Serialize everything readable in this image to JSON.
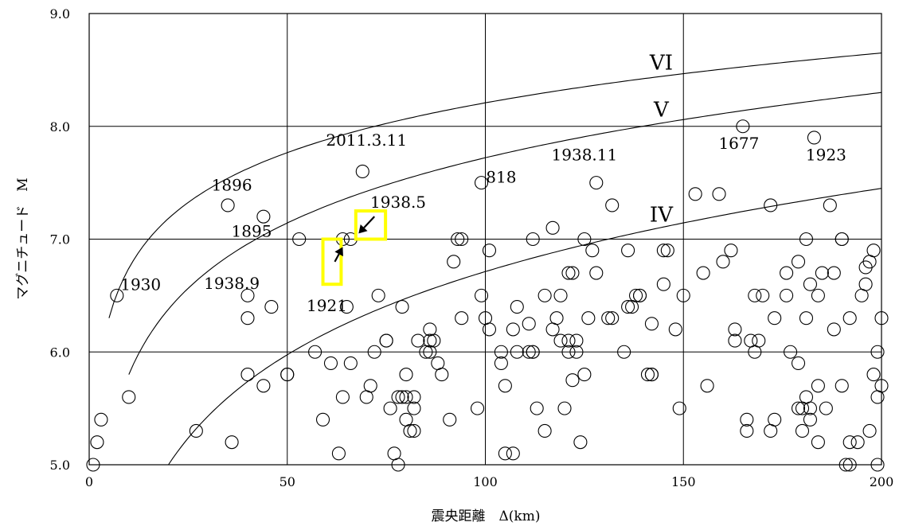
{
  "chart_data": {
    "type": "scatter",
    "title": "",
    "xlabel": "震央距離　Δ(km)",
    "ylabel": "マグニチュード　M",
    "xlim": [
      0,
      200
    ],
    "ylim": [
      5.0,
      9.0
    ],
    "x_ticks": [
      "0",
      "50",
      "100",
      "150",
      "200"
    ],
    "y_ticks": [
      "5.0",
      "6.0",
      "7.0",
      "8.0",
      "9.0"
    ],
    "grid": true,
    "points": [
      [
        2,
        5.2
      ],
      [
        3,
        5.4
      ],
      [
        1,
        5.0
      ],
      [
        7,
        6.5
      ],
      [
        10,
        5.6
      ],
      [
        27,
        5.3
      ],
      [
        35,
        7.3
      ],
      [
        36,
        5.2
      ],
      [
        44,
        7.2
      ],
      [
        40,
        6.5
      ],
      [
        40,
        6.3
      ],
      [
        40,
        5.8
      ],
      [
        46,
        6.4
      ],
      [
        44,
        5.7
      ],
      [
        50,
        5.8
      ],
      [
        50,
        5.8
      ],
      [
        53,
        7.0
      ],
      [
        57,
        6.0
      ],
      [
        59,
        5.4
      ],
      [
        61,
        5.9
      ],
      [
        63,
        5.1
      ],
      [
        64,
        5.6
      ],
      [
        64,
        7.0
      ],
      [
        66,
        7.0
      ],
      [
        65,
        6.4
      ],
      [
        66,
        5.9
      ],
      [
        69,
        7.6
      ],
      [
        70,
        5.6
      ],
      [
        71,
        5.7
      ],
      [
        72,
        6.0
      ],
      [
        73,
        6.5
      ],
      [
        75,
        6.1
      ],
      [
        75,
        6.1
      ],
      [
        76,
        5.5
      ],
      [
        77,
        5.1
      ],
      [
        78,
        5.0
      ],
      [
        78,
        5.6
      ],
      [
        79,
        5.6
      ],
      [
        80,
        5.6
      ],
      [
        79,
        6.4
      ],
      [
        80,
        5.8
      ],
      [
        80,
        5.4
      ],
      [
        81,
        5.3
      ],
      [
        82,
        5.3
      ],
      [
        82,
        5.6
      ],
      [
        82,
        5.5
      ],
      [
        83,
        6.1
      ],
      [
        85,
        6.0
      ],
      [
        86,
        6.2
      ],
      [
        86,
        6.0
      ],
      [
        86,
        6.1
      ],
      [
        87,
        6.1
      ],
      [
        88,
        5.9
      ],
      [
        89,
        5.8
      ],
      [
        91,
        5.4
      ],
      [
        92,
        6.8
      ],
      [
        93,
        7.0
      ],
      [
        94,
        7.0
      ],
      [
        94,
        6.3
      ],
      [
        98,
        5.5
      ],
      [
        99,
        7.5
      ],
      [
        99,
        6.5
      ],
      [
        100,
        6.3
      ],
      [
        101,
        6.9
      ],
      [
        101,
        6.2
      ],
      [
        104,
        5.9
      ],
      [
        104,
        6.0
      ],
      [
        105,
        5.1
      ],
      [
        105,
        5.7
      ],
      [
        107,
        6.2
      ],
      [
        108,
        6.4
      ],
      [
        108,
        6.0
      ],
      [
        107,
        5.1
      ],
      [
        111,
        6.25
      ],
      [
        111,
        6.0
      ],
      [
        112,
        6.0
      ],
      [
        112,
        7.0
      ],
      [
        112,
        6.0
      ],
      [
        113,
        5.5
      ],
      [
        115,
        6.5
      ],
      [
        115,
        5.3
      ],
      [
        117,
        6.2
      ],
      [
        117,
        7.1
      ],
      [
        118,
        6.3
      ],
      [
        119,
        6.5
      ],
      [
        119,
        6.1
      ],
      [
        120,
        5.5
      ],
      [
        121,
        6.1
      ],
      [
        121,
        6.0
      ],
      [
        121,
        6.7
      ],
      [
        122,
        5.75
      ],
      [
        122,
        6.7
      ],
      [
        123,
        6.1
      ],
      [
        123,
        6.0
      ],
      [
        124,
        5.2
      ],
      [
        125,
        7.0
      ],
      [
        125,
        5.8
      ],
      [
        126,
        6.3
      ],
      [
        127,
        6.9
      ],
      [
        128,
        6.7
      ],
      [
        128,
        7.5
      ],
      [
        131,
        6.3
      ],
      [
        132,
        6.3
      ],
      [
        132,
        7.3
      ],
      [
        135,
        6.0
      ],
      [
        136,
        6.4
      ],
      [
        136,
        6.9
      ],
      [
        137,
        6.4
      ],
      [
        138,
        6.5
      ],
      [
        139,
        6.5
      ],
      [
        139,
        6.5
      ],
      [
        141,
        5.8
      ],
      [
        142,
        5.8
      ],
      [
        142,
        5.8
      ],
      [
        142,
        6.25
      ],
      [
        145,
        6.6
      ],
      [
        145,
        6.9
      ],
      [
        146,
        6.9
      ],
      [
        148,
        6.2
      ],
      [
        149,
        5.5
      ],
      [
        150,
        6.5
      ],
      [
        153,
        7.4
      ],
      [
        155,
        6.7
      ],
      [
        156,
        5.7
      ],
      [
        159,
        7.4
      ],
      [
        160,
        6.8
      ],
      [
        162,
        6.9
      ],
      [
        163,
        6.2
      ],
      [
        163,
        6.1
      ],
      [
        165,
        8.0
      ],
      [
        166,
        5.3
      ],
      [
        166,
        5.4
      ],
      [
        167,
        6.1
      ],
      [
        168,
        6.0
      ],
      [
        168,
        6.5
      ],
      [
        169,
        6.1
      ],
      [
        170,
        6.5
      ],
      [
        172,
        5.3
      ],
      [
        172,
        7.3
      ],
      [
        173,
        6.3
      ],
      [
        173,
        5.4
      ],
      [
        176,
        6.5
      ],
      [
        176,
        6.7
      ],
      [
        177,
        6.0
      ],
      [
        179,
        5.9
      ],
      [
        179,
        6.8
      ],
      [
        179,
        5.5
      ],
      [
        180,
        5.5
      ],
      [
        180,
        5.3
      ],
      [
        181,
        5.6
      ],
      [
        181,
        7.0
      ],
      [
        181,
        6.3
      ],
      [
        182,
        6.6
      ],
      [
        182,
        5.4
      ],
      [
        182,
        5.5
      ],
      [
        183,
        7.9
      ],
      [
        184,
        6.5
      ],
      [
        184,
        5.7
      ],
      [
        184,
        5.2
      ],
      [
        185,
        6.7
      ],
      [
        186,
        5.5
      ],
      [
        187,
        7.3
      ],
      [
        188,
        6.7
      ],
      [
        188,
        6.2
      ],
      [
        190,
        7.0
      ],
      [
        190,
        7.0
      ],
      [
        190,
        5.7
      ],
      [
        191,
        5.0
      ],
      [
        192,
        5.0
      ],
      [
        192,
        5.2
      ],
      [
        192,
        6.3
      ],
      [
        194,
        5.2
      ],
      [
        195,
        6.5
      ],
      [
        196,
        6.75
      ],
      [
        196,
        6.6
      ],
      [
        197,
        5.3
      ],
      [
        197,
        6.8
      ],
      [
        198,
        5.8
      ],
      [
        198,
        6.9
      ],
      [
        199,
        5.0
      ],
      [
        199,
        6.0
      ],
      [
        199,
        5.6
      ],
      [
        200,
        5.7
      ],
      [
        200,
        6.3
      ]
    ],
    "curves": [
      {
        "name": "VI",
        "start_km": 5,
        "start_m": 6.3,
        "end_m": 8.65
      },
      {
        "name": "V",
        "start_km": 10,
        "start_m": 5.8,
        "end_m": 8.3
      },
      {
        "name": "IV",
        "start_km": 20,
        "start_m": 5.0,
        "end_m": 7.45
      }
    ],
    "annotations": [
      {
        "text": "1930",
        "x": 13,
        "y": 6.55
      },
      {
        "text": "1896",
        "x": 36,
        "y": 7.43
      },
      {
        "text": "1895",
        "x": 41,
        "y": 7.02
      },
      {
        "text": "1938.9",
        "x": 36,
        "y": 6.56
      },
      {
        "text": "1921",
        "x": 60,
        "y": 6.36
      },
      {
        "text": "2011.3.11",
        "x": 70,
        "y": 7.83
      },
      {
        "text": "1938.5",
        "x": 78,
        "y": 7.28
      },
      {
        "text": "818",
        "x": 104,
        "y": 7.5
      },
      {
        "text": "1938.11",
        "x": 125,
        "y": 7.7
      },
      {
        "text": "1677",
        "x": 164,
        "y": 7.8
      },
      {
        "text": "1923",
        "x": 186,
        "y": 7.7
      }
    ],
    "arrows": [
      {
        "from_km": 62,
        "from_m": 6.8,
        "to_km": 64,
        "to_m": 6.93
      },
      {
        "from_km": 72,
        "from_m": 7.2,
        "to_km": 68,
        "to_m": 7.05
      }
    ],
    "highlight_boxes": [
      {
        "x0": 59,
        "x1": 63.6,
        "y0": 6.6,
        "y1": 7.0
      },
      {
        "x0": 67.3,
        "x1": 74.8,
        "y0": 7.0,
        "y1": 7.25
      }
    ],
    "highlight_color": "#ffff00"
  }
}
